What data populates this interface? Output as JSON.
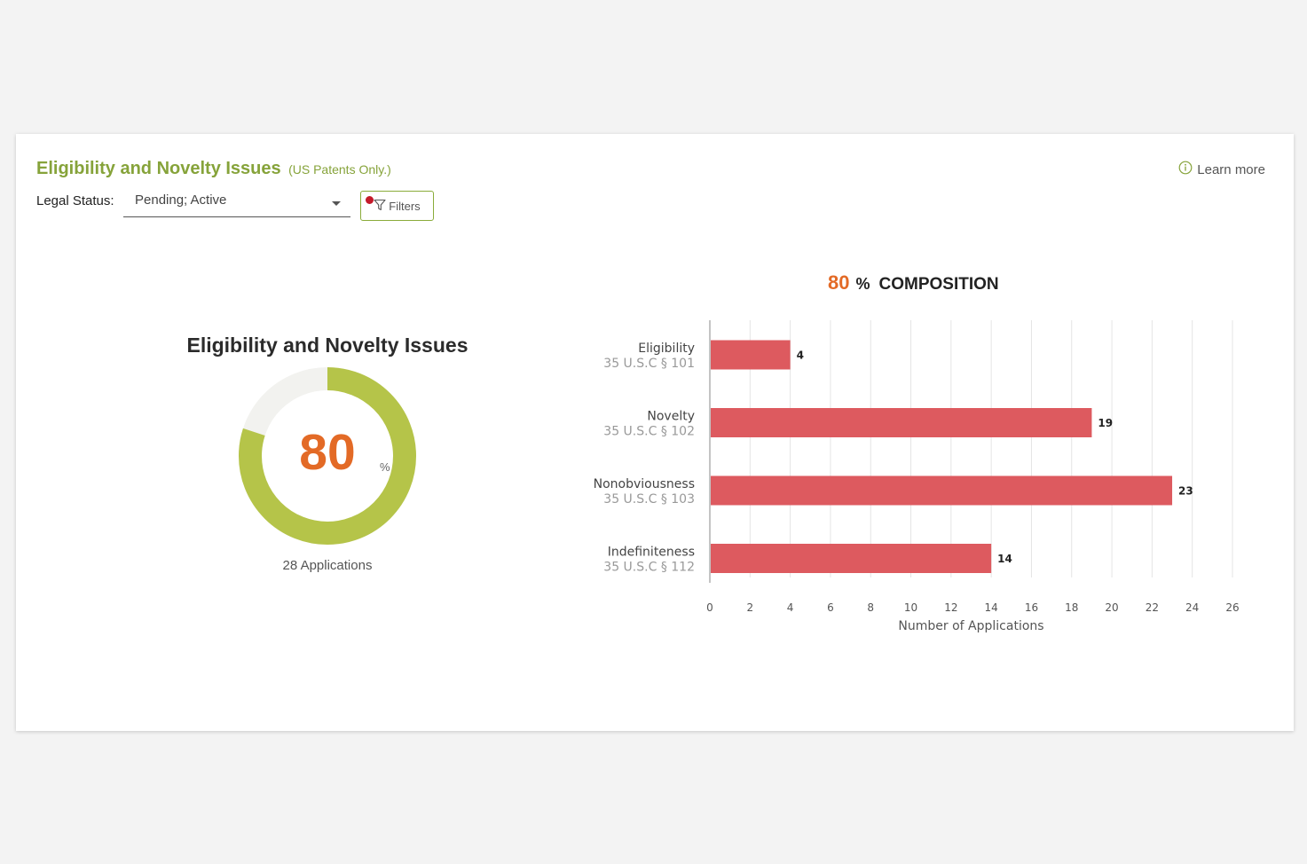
{
  "header": {
    "title": "Eligibility and Novelty Issues",
    "subtitle": "(US Patents Only.)",
    "learn_more": "Learn more"
  },
  "filters": {
    "legal_status_label": "Legal Status:",
    "legal_status_value": "Pending; Active",
    "filters_button": "Filters"
  },
  "donut": {
    "title": "Eligibility and Novelty Issues",
    "value": "80",
    "percent_symbol": "%",
    "fraction": 0.8,
    "subtext": "28 Applications",
    "colors": {
      "fill": "#b5c449",
      "track": "#f2f2ef"
    }
  },
  "composition": {
    "value": "80",
    "percent_symbol": "%",
    "label": "COMPOSITION"
  },
  "chart_data": {
    "type": "bar",
    "orientation": "horizontal",
    "categories": [
      "Eligibility",
      "Novelty",
      "Nonobviousness",
      "Indefiniteness"
    ],
    "category_sublabels": [
      "35 U.S.C § 101",
      "35 U.S.C § 102",
      "35 U.S.C § 103",
      "35 U.S.C § 112"
    ],
    "values": [
      4,
      19,
      23,
      14
    ],
    "xlabel": "Number of Applications",
    "xlim": [
      0,
      26
    ],
    "xticks": [
      0,
      2,
      4,
      6,
      8,
      10,
      12,
      14,
      16,
      18,
      20,
      22,
      24,
      26
    ],
    "grid": true,
    "bar_color": "#dd5a5f"
  }
}
